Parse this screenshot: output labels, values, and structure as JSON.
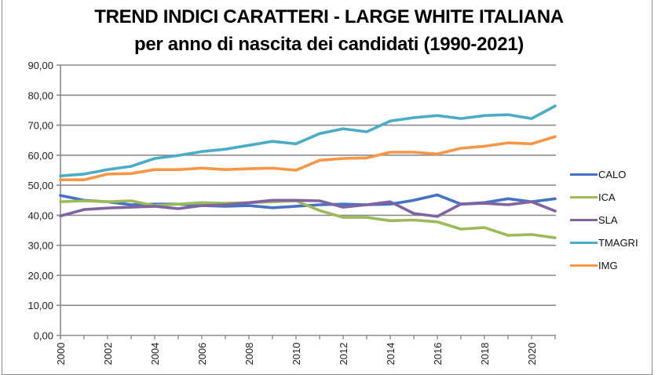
{
  "chart_data": {
    "type": "line",
    "title": "TREND INDICI CARATTERI  - LARGE WHITE ITALIANA",
    "subtitle": "per anno di nascita dei candidati (1990-2021)",
    "xlabel": "",
    "ylabel": "",
    "ylim": [
      0,
      90
    ],
    "yticks": [
      "0,00",
      "10,00",
      "20,00",
      "30,00",
      "40,00",
      "50,00",
      "60,00",
      "70,00",
      "80,00",
      "90,00"
    ],
    "x": [
      2000,
      2001,
      2002,
      2003,
      2004,
      2005,
      2006,
      2007,
      2008,
      2009,
      2010,
      2011,
      2012,
      2013,
      2014,
      2015,
      2016,
      2017,
      2018,
      2019,
      2020,
      2021
    ],
    "xtick_labels": [
      "2000",
      "2002",
      "2004",
      "2006",
      "2008",
      "2010",
      "2012",
      "2014",
      "2016",
      "2018",
      "2020"
    ],
    "grid": true,
    "legend_position": "right",
    "series": [
      {
        "name": "CALO",
        "color": "#4472c4",
        "values": [
          46.6,
          45.0,
          44.5,
          43.5,
          43.7,
          43.7,
          43.2,
          43.0,
          43.2,
          42.5,
          43.0,
          43.5,
          43.7,
          43.5,
          43.7,
          45.0,
          46.8,
          43.7,
          44.2,
          45.5,
          44.5,
          45.5
        ]
      },
      {
        "name": "ICA",
        "color": "#9bbb59",
        "values": [
          44.5,
          44.8,
          44.5,
          44.8,
          43.2,
          43.7,
          44.2,
          44.0,
          44.2,
          44.5,
          44.8,
          41.6,
          39.3,
          39.3,
          38.2,
          38.4,
          37.8,
          35.4,
          35.9,
          33.3,
          33.6,
          32.5
        ]
      },
      {
        "name": "SLA",
        "color": "#8064a2",
        "values": [
          39.8,
          41.9,
          42.4,
          42.7,
          43.0,
          42.2,
          43.2,
          43.5,
          44.2,
          45.0,
          45.0,
          44.8,
          42.7,
          43.5,
          44.5,
          40.6,
          39.6,
          43.7,
          44.0,
          43.5,
          44.5,
          41.4
        ]
      },
      {
        "name": "TMAGRI",
        "color": "#4bacc6",
        "values": [
          53.1,
          53.7,
          55.2,
          56.3,
          58.9,
          59.9,
          61.2,
          62.0,
          63.3,
          64.6,
          63.8,
          67.2,
          68.8,
          67.8,
          71.4,
          72.5,
          73.2,
          72.2,
          73.2,
          73.5,
          72.2,
          76.4
        ]
      },
      {
        "name": "IMG",
        "color": "#f79646",
        "values": [
          51.8,
          51.8,
          53.7,
          53.9,
          55.2,
          55.2,
          55.7,
          55.2,
          55.5,
          55.7,
          55.0,
          58.3,
          58.9,
          59.1,
          61.0,
          61.0,
          60.4,
          62.3,
          63.0,
          64.1,
          63.8,
          66.2
        ]
      }
    ]
  }
}
